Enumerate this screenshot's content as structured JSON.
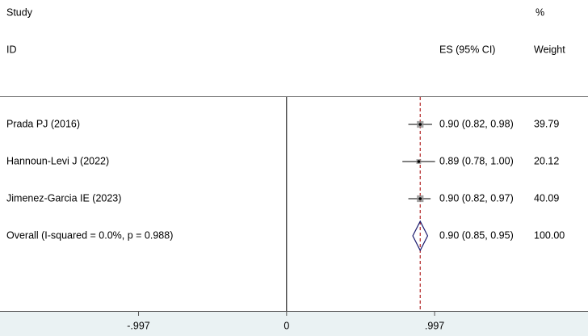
{
  "chart_data": {
    "type": "forest",
    "column_headers": {
      "study": "Study",
      "id": "ID",
      "es": "ES (95% CI)",
      "weight_top": "%",
      "weight": "Weight"
    },
    "studies": [
      {
        "name": "Prada PJ (2016)",
        "es": 0.9,
        "ci": [
          0.82,
          0.98
        ],
        "es_label": "0.90 (0.82, 0.98)",
        "weight": 39.79
      },
      {
        "name": "Hannoun-Levi J (2022)",
        "es": 0.89,
        "ci": [
          0.78,
          1.0
        ],
        "es_label": "0.89 (0.78, 1.00)",
        "weight": 20.12
      },
      {
        "name": "Jimenez-Garcia IE (2023)",
        "es": 0.9,
        "ci": [
          0.82,
          0.97
        ],
        "es_label": "0.90 (0.82, 0.97)",
        "weight": 40.09
      }
    ],
    "overall": {
      "name": "Overall  (I-squared = 0.0%, p = 0.988)",
      "es": 0.9,
      "ci": [
        0.85,
        0.95
      ],
      "es_label": "0.90 (0.85, 0.95)",
      "weight": {
        "value": 100,
        "label": "100.00"
      }
    },
    "xlim": [
      -1.93,
      2.03
    ],
    "xticks": [
      {
        "value": -0.997,
        "label": "-.997"
      },
      0,
      {
        "value": 0.997,
        "label": ".997"
      }
    ],
    "null_line": 0,
    "colors": {
      "box": "#8c8c8c",
      "diamond": "#1a1a6e",
      "overall_line": "#b22222",
      "line": "#000000",
      "axis_band": "#eaf2f3"
    }
  }
}
